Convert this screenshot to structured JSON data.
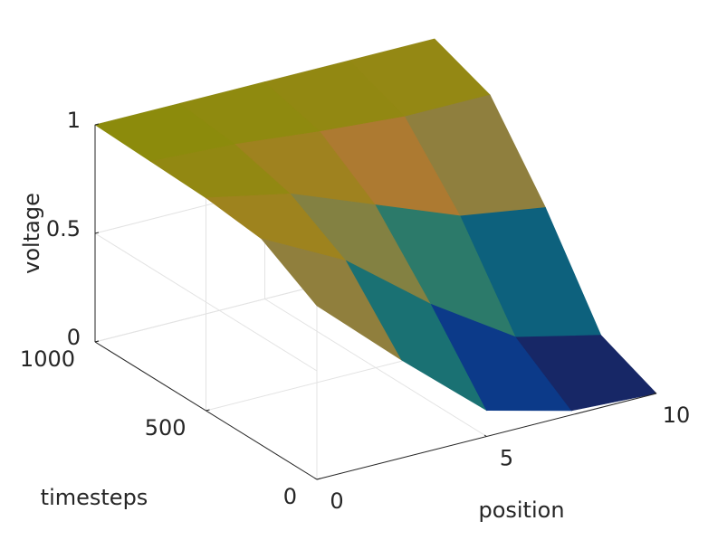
{
  "chart_data": {
    "type": "surface",
    "xlabel": "position",
    "ylabel": "timesteps",
    "zlabel": "voltage",
    "x": [
      0,
      2.5,
      5,
      7.5,
      10
    ],
    "y": [
      0,
      250,
      500,
      750,
      1000
    ],
    "z": [
      [
        0.8,
        0.45,
        0.12,
        0.02,
        0
      ],
      [
        0.95,
        0.75,
        0.45,
        0.2,
        0.11
      ],
      [
        0.98,
        0.9,
        0.75,
        0.6,
        0.54
      ],
      [
        0.99,
        0.97,
        0.93,
        0.9,
        0.9
      ],
      [
        1,
        1,
        1,
        1,
        1
      ]
    ],
    "xlim": [
      0,
      10
    ],
    "xticks": [
      0,
      5,
      10
    ],
    "ylim": [
      0,
      1000
    ],
    "yticks": [
      0,
      500,
      1000
    ],
    "zlim": [
      0,
      1
    ],
    "zticks": [
      0,
      0.5,
      1
    ],
    "grid": true,
    "colormap": [
      "#1f1a4d",
      "#0c3a8a",
      "#0d6a7a",
      "#4a8a5a",
      "#b07a30",
      "#8a8c0a"
    ]
  }
}
